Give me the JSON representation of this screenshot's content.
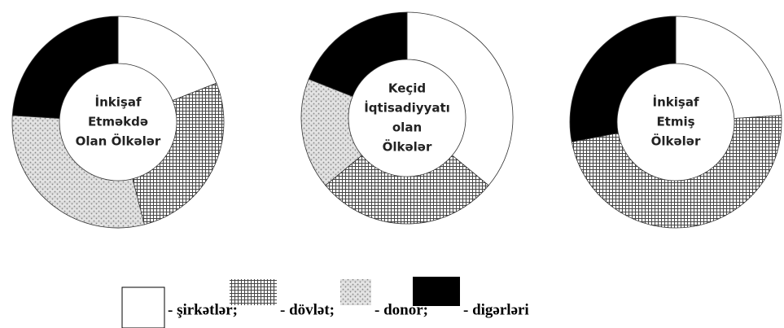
{
  "chart_data": [
    {
      "type": "pie",
      "title": [
        "İnkişaf",
        "Etməkdə",
        "Olan Ölkələr"
      ],
      "values": [
        19,
        27,
        30,
        24
      ]
    },
    {
      "type": "pie",
      "title": [
        "Keçid",
        "İqtisadiyyatı",
        "olan",
        "Ölkələr"
      ],
      "values": [
        36,
        28,
        17,
        19
      ]
    },
    {
      "type": "pie",
      "title": [
        "İnkişaf",
        "Etmiş",
        "Ölkələr"
      ],
      "values": [
        24,
        48,
        0,
        28
      ]
    }
  ],
  "legend": [
    {
      "label": "- şirkətlər;",
      "pattern": "none"
    },
    {
      "label": "- dövlət;",
      "pattern": "grid"
    },
    {
      "label": "- donor;",
      "pattern": "dots"
    },
    {
      "label": "- digərləri",
      "pattern": "solid"
    }
  ]
}
